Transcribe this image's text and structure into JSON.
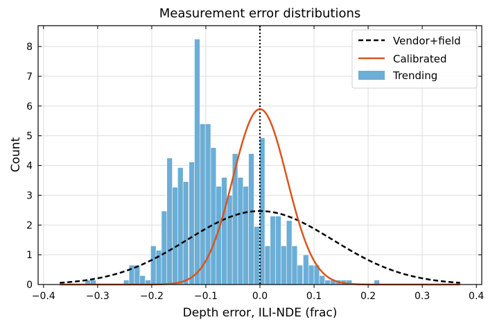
{
  "chart_data": {
    "type": "histogram+line",
    "title": "Measurement error distributions",
    "xlabel": "Depth error, ILI-NDE (frac)",
    "ylabel": "Count",
    "xlim": [
      -0.41,
      0.41
    ],
    "ylim": [
      0,
      8.7
    ],
    "xticks": [
      -0.4,
      -0.3,
      -0.2,
      -0.1,
      0.0,
      0.1,
      0.2,
      0.3,
      0.4
    ],
    "xtick_labels": [
      "−0.4",
      "−0.3",
      "−0.2",
      "−0.1",
      "0.0",
      "0.1",
      "0.2",
      "0.3",
      "0.4"
    ],
    "yticks": [
      0,
      1,
      2,
      3,
      4,
      5,
      6,
      7,
      8
    ],
    "ytick_labels": [
      "0",
      "1",
      "2",
      "3",
      "4",
      "5",
      "6",
      "7",
      "8"
    ],
    "grid": true,
    "legend_position": "top-right",
    "vline_x": 0.0,
    "histogram": {
      "name": "Trending",
      "color": "#6baed6",
      "bin_width": 0.0101,
      "bins": [
        {
          "x": -0.318,
          "h": 0.15
        },
        {
          "x": -0.308,
          "h": 0.15
        },
        {
          "x": -0.247,
          "h": 0.15
        },
        {
          "x": -0.237,
          "h": 0.65
        },
        {
          "x": -0.227,
          "h": 0.65
        },
        {
          "x": -0.217,
          "h": 0.3
        },
        {
          "x": -0.207,
          "h": 0.15
        },
        {
          "x": -0.197,
          "h": 1.3
        },
        {
          "x": -0.187,
          "h": 1.15
        },
        {
          "x": -0.177,
          "h": 2.47
        },
        {
          "x": -0.167,
          "h": 4.25
        },
        {
          "x": -0.157,
          "h": 3.27
        },
        {
          "x": -0.147,
          "h": 3.93
        },
        {
          "x": -0.137,
          "h": 3.46
        },
        {
          "x": -0.126,
          "h": 4.12
        },
        {
          "x": -0.116,
          "h": 8.25
        },
        {
          "x": -0.106,
          "h": 5.4
        },
        {
          "x": -0.096,
          "h": 5.4
        },
        {
          "x": -0.086,
          "h": 4.6
        },
        {
          "x": -0.076,
          "h": 3.3
        },
        {
          "x": -0.066,
          "h": 3.6
        },
        {
          "x": -0.056,
          "h": 3.0
        },
        {
          "x": -0.046,
          "h": 4.4
        },
        {
          "x": -0.036,
          "h": 3.6
        },
        {
          "x": -0.026,
          "h": 3.3
        },
        {
          "x": -0.016,
          "h": 4.4
        },
        {
          "x": -0.006,
          "h": 1.95
        },
        {
          "x": 0.004,
          "h": 4.93
        },
        {
          "x": 0.014,
          "h": 1.3
        },
        {
          "x": 0.024,
          "h": 2.3
        },
        {
          "x": 0.034,
          "h": 2.3
        },
        {
          "x": 0.044,
          "h": 1.3
        },
        {
          "x": 0.054,
          "h": 2.15
        },
        {
          "x": 0.064,
          "h": 1.3
        },
        {
          "x": 0.074,
          "h": 0.65
        },
        {
          "x": 0.085,
          "h": 1.0
        },
        {
          "x": 0.095,
          "h": 0.65
        },
        {
          "x": 0.105,
          "h": 0.65
        },
        {
          "x": 0.115,
          "h": 0.3
        },
        {
          "x": 0.125,
          "h": 0.15
        },
        {
          "x": 0.135,
          "h": 0.15
        },
        {
          "x": 0.145,
          "h": 0.15
        },
        {
          "x": 0.155,
          "h": 0.15
        },
        {
          "x": 0.165,
          "h": 0.15
        },
        {
          "x": 0.216,
          "h": 0.15
        }
      ]
    },
    "series": [
      {
        "name": "Vendor+field",
        "style": "dashed",
        "color": "#000000",
        "mean": 0.0,
        "sd": 0.135,
        "peak": 2.47,
        "xmin": -0.37,
        "xmax": 0.37
      },
      {
        "name": "Calibrated",
        "style": "solid",
        "color": "#d9541e",
        "mean": 0.0,
        "sd": 0.05,
        "peak": 5.9,
        "xmin": -0.37,
        "xmax": 0.37
      }
    ],
    "legend": [
      "Vendor+field",
      "Calibrated",
      "Trending"
    ]
  }
}
